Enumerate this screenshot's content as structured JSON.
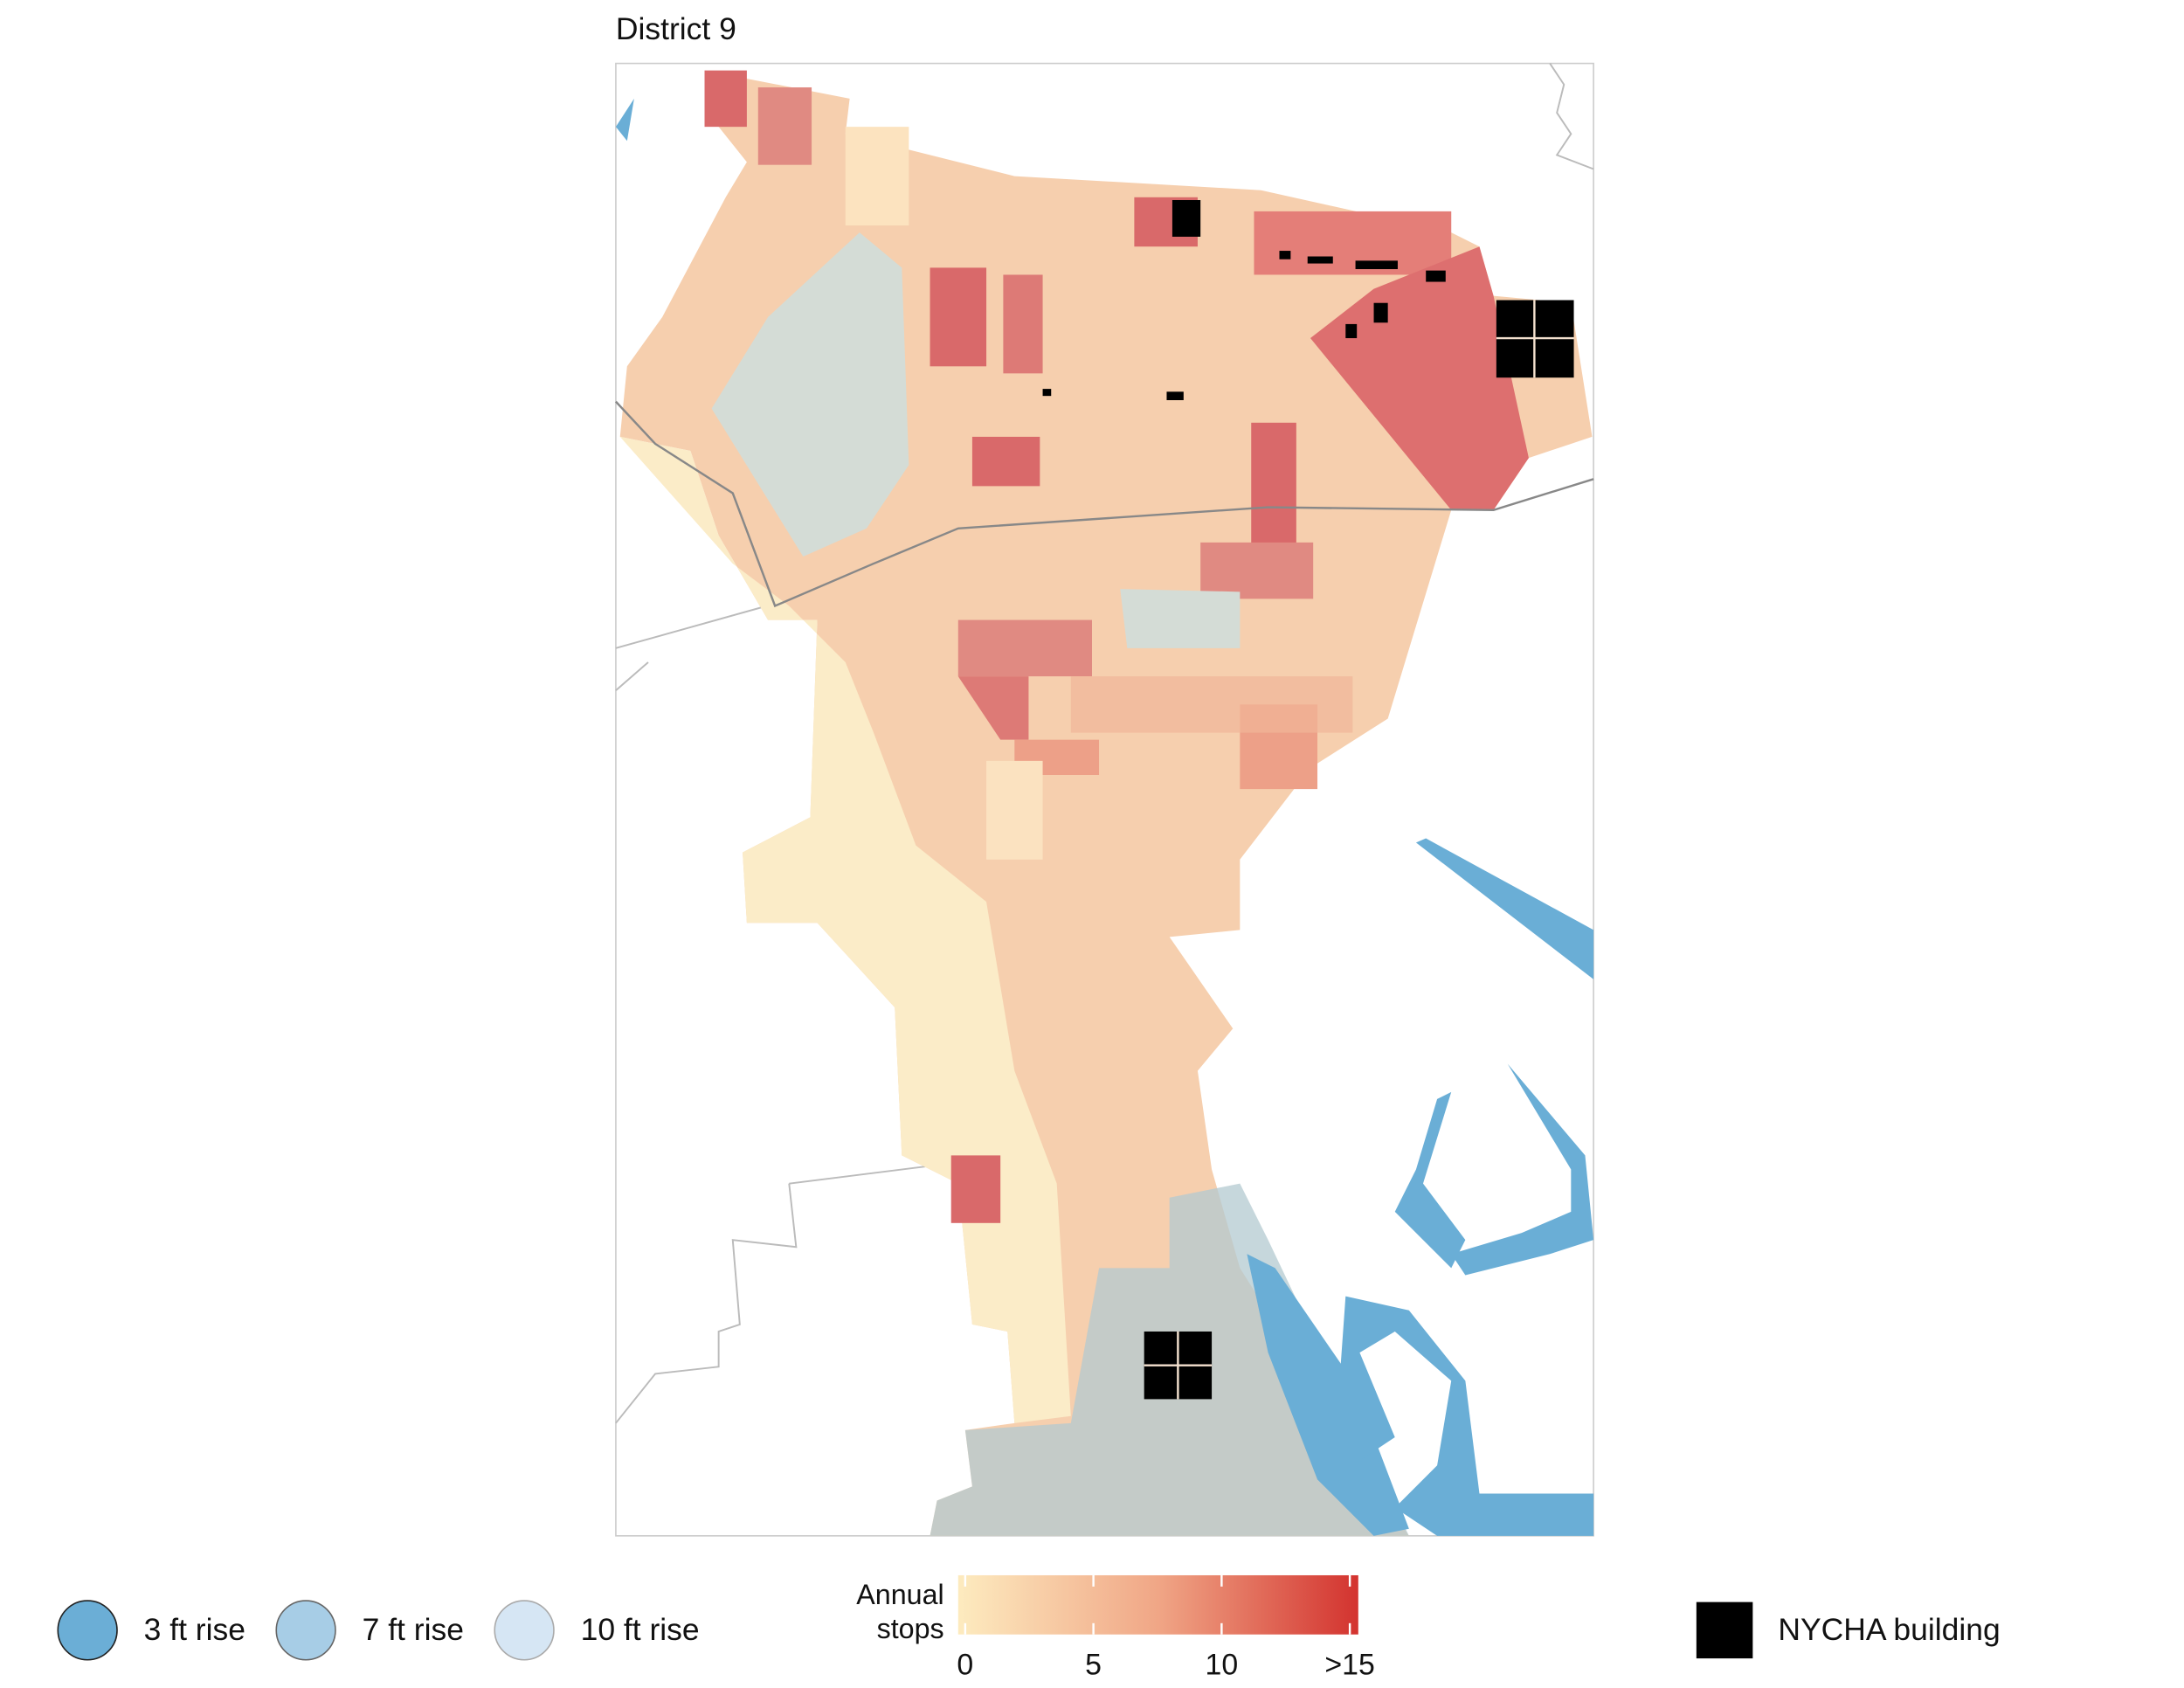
{
  "title": "District 9",
  "legend": {
    "flood": [
      "3 ft rise",
      "7 ft rise",
      "10 ft rise"
    ],
    "colorbar": {
      "title": "Annual stops",
      "lim": [
        0,
        15
      ],
      "ticks": [
        0,
        5,
        10,
        {
          "value": 15,
          "label": ">15"
        }
      ]
    },
    "building": "NYCHA building"
  }
}
